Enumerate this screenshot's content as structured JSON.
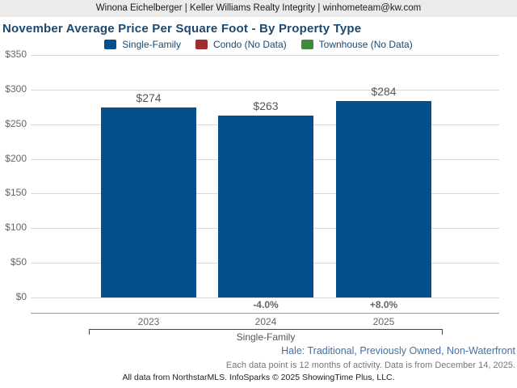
{
  "header": {
    "text": "Winona Eichelberger | Keller Williams Realty Integrity | winhometeam@kw.com"
  },
  "title": "November Average Price Per Square Foot - By Property Type",
  "legend": {
    "items": [
      {
        "label": "Single-Family",
        "color": "#054f8c"
      },
      {
        "label": "Condo (No Data)",
        "color": "#a12b2e"
      },
      {
        "label": "Townhouse (No Data)",
        "color": "#3e8b3e"
      }
    ]
  },
  "chart_data": {
    "type": "bar",
    "title": "November Average Price Per Square Foot - By Property Type",
    "categories": [
      "2023",
      "2024",
      "2025"
    ],
    "series": [
      {
        "name": "Single-Family",
        "values": [
          274,
          263,
          284
        ],
        "color": "#054f8c"
      },
      {
        "name": "Condo",
        "values": [
          null,
          null,
          null
        ],
        "note": "No Data",
        "color": "#a12b2e"
      },
      {
        "name": "Townhouse",
        "values": [
          null,
          null,
          null
        ],
        "note": "No Data",
        "color": "#3e8b3e"
      }
    ],
    "value_labels": [
      "$274",
      "$263",
      "$284"
    ],
    "pct_change_labels": [
      "",
      "-4.0%",
      "+8.0%"
    ],
    "xlabel": "",
    "ylabel": "",
    "ylim": [
      0,
      350
    ],
    "ytick_step": 50,
    "ytick_labels": [
      "$0",
      "$50",
      "$100",
      "$150",
      "$200",
      "$250",
      "$300",
      "$350"
    ],
    "grid": true,
    "legend_position": "top",
    "group_label": "Single-Family"
  },
  "colors": {
    "gridline": "#d9d9d9",
    "axis_line": "#999999",
    "bar": "#054f8c"
  },
  "footer": {
    "filter_note": "Hale: Traditional, Previously Owned, Non-Waterfront",
    "data_note": "Each data point is 12 months of activity. Data is from December 14, 2025.",
    "copyright": "All data from NorthstarMLS. InfoSparks © 2025 ShowingTime Plus, LLC."
  }
}
